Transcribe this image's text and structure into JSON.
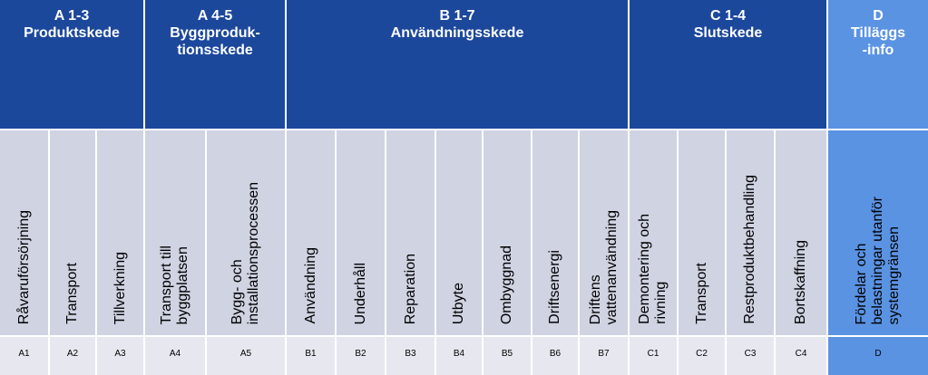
{
  "stages": [
    {
      "id": "A1-3",
      "lines": [
        "A 1-3",
        "Produktskede"
      ],
      "info": false
    },
    {
      "id": "A4-5",
      "lines": [
        "A 4-5",
        "Byggproduk-",
        "tionsskede"
      ],
      "info": false
    },
    {
      "id": "B1-7",
      "lines": [
        "B 1-7",
        "Användningsskede"
      ],
      "info": false
    },
    {
      "id": "C1-4",
      "lines": [
        "C 1-4",
        "Slutskede"
      ],
      "info": false
    },
    {
      "id": "D",
      "lines": [
        "D",
        "Tilläggs",
        "-info"
      ],
      "info": true
    }
  ],
  "modules": [
    {
      "code": "A1",
      "lines": [
        "Råvaruförsörjning"
      ],
      "info": false
    },
    {
      "code": "A2",
      "lines": [
        "Transport"
      ],
      "info": false
    },
    {
      "code": "A3",
      "lines": [
        "Tillverkning"
      ],
      "info": false
    },
    {
      "code": "A4",
      "lines": [
        "Transport till",
        "byggplatsen"
      ],
      "info": false
    },
    {
      "code": "A5",
      "lines": [
        "Bygg- och",
        "installationsprocessen"
      ],
      "info": false
    },
    {
      "code": "B1",
      "lines": [
        "Användning"
      ],
      "info": false
    },
    {
      "code": "B2",
      "lines": [
        "Underhåll"
      ],
      "info": false
    },
    {
      "code": "B3",
      "lines": [
        "Reparation"
      ],
      "info": false
    },
    {
      "code": "B4",
      "lines": [
        "Utbyte"
      ],
      "info": false
    },
    {
      "code": "B5",
      "lines": [
        "Ombyggnad"
      ],
      "info": false
    },
    {
      "code": "B6",
      "lines": [
        "Driftsenergi"
      ],
      "info": false
    },
    {
      "code": "B7",
      "lines": [
        "Driftens",
        "vattenanvändning"
      ],
      "info": false
    },
    {
      "code": "C1",
      "lines": [
        "Demontering och",
        "rivning"
      ],
      "info": false
    },
    {
      "code": "C2",
      "lines": [
        "Transport"
      ],
      "info": false
    },
    {
      "code": "C3",
      "lines": [
        "Restproduktbehandling"
      ],
      "info": false
    },
    {
      "code": "C4",
      "lines": [
        "Bortskaffning"
      ],
      "info": false
    },
    {
      "code": "D",
      "lines": [
        "Fördelar och",
        "belastningar  utanför",
        "systemgränsen"
      ],
      "info": true
    }
  ],
  "colors": {
    "stage_header": "#1c489c",
    "info_header": "#5b93e3",
    "module_cell": "#cfd3e2",
    "code_cell": "#e7e8ef",
    "grid_lines": "#ffffff"
  }
}
